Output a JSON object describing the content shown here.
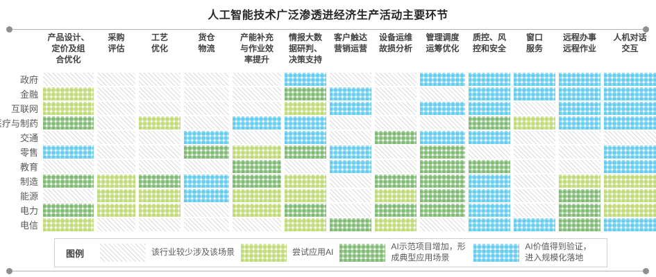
{
  "title": "人工智能技术广泛渗透进经济生产活动主要环节",
  "legend": {
    "label": "图例",
    "items": [
      {
        "key": "none",
        "label": "该行业较少涉及该场景"
      },
      {
        "key": "try",
        "label": "尝试应用AI"
      },
      {
        "key": "demo",
        "label": "AI示范项目增加，形成典型应用场景"
      },
      {
        "key": "scale",
        "label": "AI价值得到验证，进入规模化落地"
      }
    ]
  },
  "colors": {
    "try_green": "#aacd4a",
    "demo_green": "#55a345",
    "scale_blue": "#3fc0ea",
    "none_hatch_gray": "#d9d9d9",
    "title_text": "#262626",
    "header_text": "#404040",
    "label_text": "#595959"
  },
  "chart_data": {
    "type": "heatmap",
    "title": "人工智能技术广泛渗透进经济生产活动主要环节",
    "columns": [
      "产品设计、定价及组合优化",
      "采购评估",
      "工艺优化",
      "货仓物流",
      "产能补充与作业效率提升",
      "情报大数据研判、决策支持",
      "客户触达营销运营",
      "设备运维故损分析",
      "管理调度运筹优化",
      "质控、风控和安全",
      "窗口服务",
      "远程办事远程作业",
      "人机对话交互"
    ],
    "columns_display": [
      "产品设计、\n定价及组\n合优化",
      "采购\n评估",
      "工艺\n优化",
      "货仓\n物流",
      "产能补充\n与作业效\n率提升",
      "情报大数\n据研判、\n决策支持",
      "客户触达\n营销运营",
      "设备运维\n故损分析",
      "管理调度\n运筹优化",
      "质控、风\n控和安全",
      "窗口\n服务",
      "远程办事\n远程作业",
      "人机对话\n交互"
    ],
    "rows": [
      "政府",
      "金融",
      "互联网",
      "医疗与制药",
      "交通",
      "零售",
      "教育",
      "制造",
      "能源",
      "电力",
      "电信"
    ],
    "levels": {
      "0": "该行业较少涉及该场景",
      "1": "尝试应用AI",
      "2": "AI示范项目增加，形成典型应用场景",
      "3": "AI价值得到验证，进入规模化落地"
    },
    "matrix": [
      [
        0,
        0,
        0,
        0,
        0,
        3,
        0,
        0,
        3,
        3,
        3,
        3,
        3
      ],
      [
        1,
        0,
        0,
        0,
        0,
        2,
        3,
        0,
        0,
        3,
        3,
        3,
        3
      ],
      [
        1,
        0,
        0,
        0,
        0,
        1,
        3,
        0,
        3,
        3,
        0,
        3,
        3
      ],
      [
        2,
        0,
        1,
        0,
        3,
        3,
        0,
        0,
        0,
        2,
        1,
        3,
        3
      ],
      [
        0,
        0,
        0,
        3,
        0,
        3,
        0,
        2,
        3,
        3,
        0,
        0,
        0
      ],
      [
        3,
        0,
        0,
        2,
        1,
        2,
        3,
        0,
        2,
        0,
        0,
        0,
        3
      ],
      [
        0,
        0,
        0,
        0,
        2,
        0,
        3,
        0,
        2,
        2,
        0,
        0,
        3
      ],
      [
        2,
        1,
        2,
        3,
        2,
        1,
        0,
        2,
        2,
        3,
        0,
        1,
        1
      ],
      [
        0,
        1,
        1,
        3,
        1,
        1,
        0,
        1,
        2,
        3,
        0,
        2,
        1
      ],
      [
        2,
        1,
        1,
        0,
        1,
        2,
        0,
        2,
        2,
        3,
        0,
        2,
        1
      ],
      [
        1,
        0,
        0,
        0,
        0,
        1,
        2,
        1,
        0,
        3,
        3,
        2,
        3
      ]
    ],
    "legend_position": "bottom",
    "grid": "off"
  }
}
